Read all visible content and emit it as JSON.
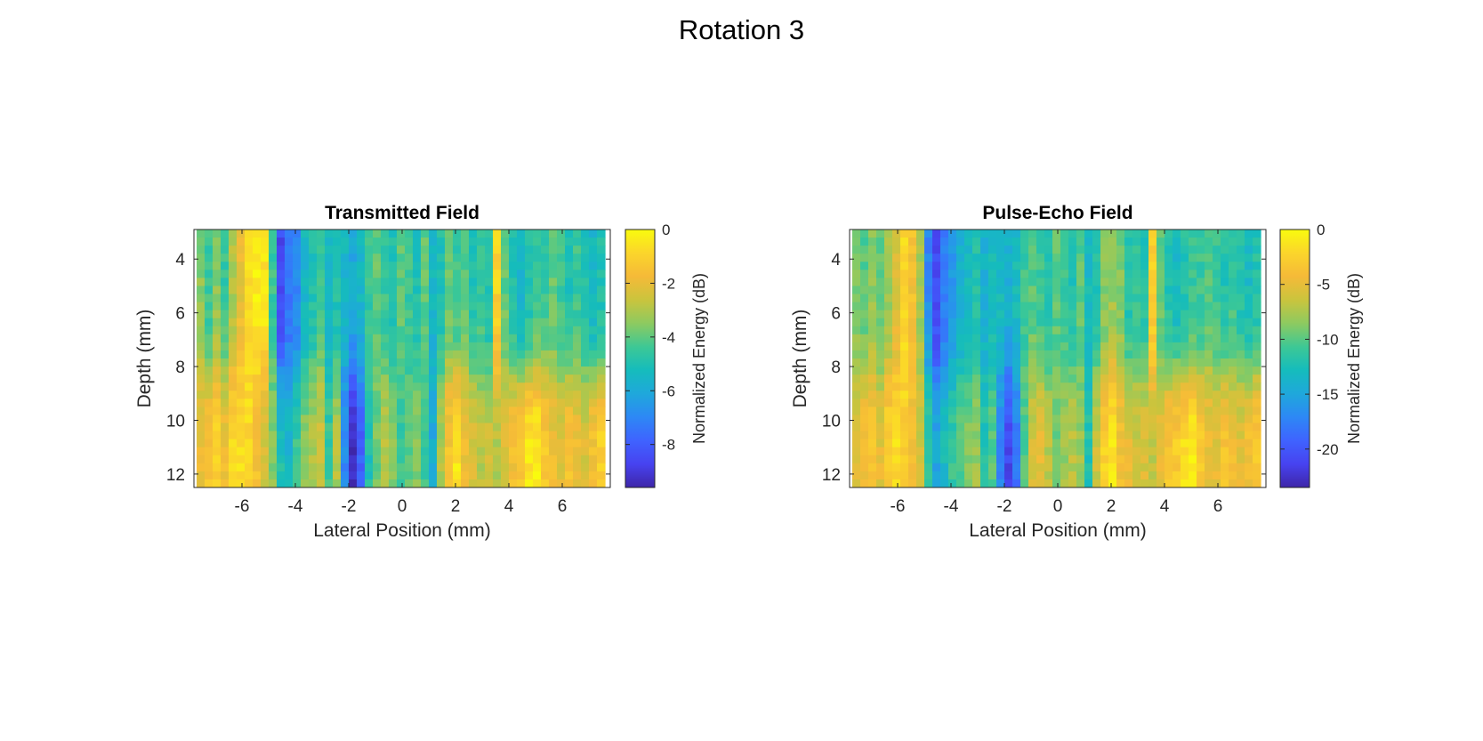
{
  "figure": {
    "title": "Rotation 3"
  },
  "colormap": [
    "#3e26a8",
    "#4743f0",
    "#3f63ff",
    "#2d88f5",
    "#1fa8db",
    "#15bcbc",
    "#3dc895",
    "#8dca60",
    "#cac43d",
    "#f5ba38",
    "#fbd52b",
    "#f9fb0e"
  ],
  "chart_data": [
    {
      "type": "heatmap",
      "title": "Transmitted Field",
      "xlabel": "Lateral Position (mm)",
      "ylabel": "Depth (mm)",
      "xlim": [
        -7.8,
        7.8
      ],
      "ylim": [
        2.9,
        12.5
      ],
      "y_reversed": true,
      "xticks": [
        -6,
        -4,
        -2,
        0,
        2,
        4,
        6
      ],
      "yticks": [
        4,
        6,
        8,
        10,
        12
      ],
      "grid": false,
      "colorbar": {
        "label": "Normalized Energy (dB)",
        "clim": [
          -9.6,
          0
        ],
        "ticks": [
          0,
          -2,
          -4,
          -6,
          -8
        ]
      },
      "columns": [
        {
          "x": -7.55,
          "top": -3.5,
          "bottom": -2.0
        },
        {
          "x": -7.25,
          "top": -4.5,
          "bottom": -1.5
        },
        {
          "x": -6.95,
          "top": -3.5,
          "bottom": -1.0
        },
        {
          "x": -6.65,
          "top": -4.5,
          "bottom": -1.8
        },
        {
          "x": -6.35,
          "top": -3.0,
          "bottom": -0.8
        },
        {
          "x": -6.05,
          "top": -2.0,
          "bottom": -0.6
        },
        {
          "x": -5.75,
          "top": -0.8,
          "bottom": -0.8
        },
        {
          "x": -5.45,
          "top": -0.3,
          "bottom": -1.6
        },
        {
          "x": -5.15,
          "top": -0.5,
          "bottom": -2.4
        },
        {
          "x": -4.85,
          "top": -4.5,
          "bottom": -3.5
        },
        {
          "x": -4.55,
          "top": -8.5,
          "bottom": -5.0
        },
        {
          "x": -4.25,
          "top": -7.5,
          "bottom": -5.5
        },
        {
          "x": -3.95,
          "top": -7.0,
          "bottom": -4.5
        },
        {
          "x": -3.65,
          "top": -5.5,
          "bottom": -3.5
        },
        {
          "x": -3.35,
          "top": -5.0,
          "bottom": -3.0
        },
        {
          "x": -3.05,
          "top": -4.5,
          "bottom": -2.5
        },
        {
          "x": -2.75,
          "top": -5.5,
          "bottom": -4.5
        },
        {
          "x": -2.45,
          "top": -5.0,
          "bottom": -3.0
        },
        {
          "x": -2.15,
          "top": -5.5,
          "bottom": -7.0
        },
        {
          "x": -1.85,
          "top": -6.0,
          "bottom": -9.3
        },
        {
          "x": -1.55,
          "top": -5.5,
          "bottom": -8.0
        },
        {
          "x": -1.25,
          "top": -4.5,
          "bottom": -5.0
        },
        {
          "x": -0.95,
          "top": -4.0,
          "bottom": -3.8
        },
        {
          "x": -0.65,
          "top": -4.5,
          "bottom": -3.0
        },
        {
          "x": -0.35,
          "top": -5.0,
          "bottom": -3.5
        },
        {
          "x": -0.05,
          "top": -4.0,
          "bottom": -4.5
        },
        {
          "x": 0.25,
          "top": -4.5,
          "bottom": -4.0
        },
        {
          "x": 0.55,
          "top": -5.0,
          "bottom": -3.5
        },
        {
          "x": 0.85,
          "top": -4.0,
          "bottom": -4.5
        },
        {
          "x": 1.15,
          "top": -5.5,
          "bottom": -6.0
        },
        {
          "x": 1.45,
          "top": -5.0,
          "bottom": -3.0
        },
        {
          "x": 1.75,
          "top": -4.0,
          "bottom": -1.5
        },
        {
          "x": 2.05,
          "top": -4.5,
          "bottom": -0.5
        },
        {
          "x": 2.35,
          "top": -4.0,
          "bottom": -1.8
        },
        {
          "x": 2.65,
          "top": -5.0,
          "bottom": -2.2
        },
        {
          "x": 2.95,
          "top": -4.5,
          "bottom": -2.8
        },
        {
          "x": 3.25,
          "top": -5.0,
          "bottom": -2.5
        },
        {
          "x": 3.55,
          "top": -1.0,
          "bottom": -3.0
        },
        {
          "x": 3.85,
          "top": -4.0,
          "bottom": -2.2
        },
        {
          "x": 4.15,
          "top": -5.0,
          "bottom": -1.6
        },
        {
          "x": 4.45,
          "top": -5.5,
          "bottom": -1.2
        },
        {
          "x": 4.75,
          "top": -5.0,
          "bottom": -0.5
        },
        {
          "x": 5.05,
          "top": -4.5,
          "bottom": -0.3
        },
        {
          "x": 5.35,
          "top": -4.5,
          "bottom": -1.2
        },
        {
          "x": 5.65,
          "top": -4.0,
          "bottom": -1.8
        },
        {
          "x": 5.95,
          "top": -4.5,
          "bottom": -2.2
        },
        {
          "x": 6.25,
          "top": -5.0,
          "bottom": -1.5
        },
        {
          "x": 6.55,
          "top": -4.5,
          "bottom": -1.8
        },
        {
          "x": 6.85,
          "top": -5.0,
          "bottom": -2.2
        },
        {
          "x": 7.15,
          "top": -5.5,
          "bottom": -1.5
        },
        {
          "x": 7.45,
          "top": -5.0,
          "bottom": -1.0
        }
      ]
    },
    {
      "type": "heatmap",
      "title": "Pulse-Echo Field",
      "xlabel": "Lateral Position (mm)",
      "ylabel": "Depth (mm)",
      "xlim": [
        -7.8,
        7.8
      ],
      "ylim": [
        2.9,
        12.5
      ],
      "y_reversed": true,
      "xticks": [
        -6,
        -4,
        -2,
        0,
        2,
        4,
        6
      ],
      "yticks": [
        4,
        6,
        8,
        10,
        12
      ],
      "grid": false,
      "colorbar": {
        "label": "Normalized Energy (dB)",
        "clim": [
          -23.5,
          0
        ],
        "ticks": [
          0,
          -5,
          -10,
          -15,
          -20
        ]
      },
      "columns": [
        {
          "x": -7.55,
          "top": -9.0,
          "bottom": -5.0
        },
        {
          "x": -7.25,
          "top": -10.0,
          "bottom": -4.0
        },
        {
          "x": -6.95,
          "top": -8.5,
          "bottom": -3.5
        },
        {
          "x": -6.65,
          "top": -10.0,
          "bottom": -5.0
        },
        {
          "x": -6.35,
          "top": -8.0,
          "bottom": -2.5
        },
        {
          "x": -6.05,
          "top": -5.5,
          "bottom": -1.8
        },
        {
          "x": -5.75,
          "top": -2.0,
          "bottom": -2.5
        },
        {
          "x": -5.45,
          "top": -4.0,
          "bottom": -4.0
        },
        {
          "x": -5.15,
          "top": -8.0,
          "bottom": -6.0
        },
        {
          "x": -4.85,
          "top": -17.0,
          "bottom": -11.0
        },
        {
          "x": -4.55,
          "top": -21.0,
          "bottom": -15.0
        },
        {
          "x": -4.25,
          "top": -18.0,
          "bottom": -13.0
        },
        {
          "x": -3.95,
          "top": -16.0,
          "bottom": -11.0
        },
        {
          "x": -3.65,
          "top": -14.0,
          "bottom": -10.0
        },
        {
          "x": -3.35,
          "top": -13.0,
          "bottom": -9.0
        },
        {
          "x": -3.05,
          "top": -12.0,
          "bottom": -8.0
        },
        {
          "x": -2.75,
          "top": -14.0,
          "bottom": -12.0
        },
        {
          "x": -2.45,
          "top": -13.0,
          "bottom": -10.0
        },
        {
          "x": -2.15,
          "top": -13.0,
          "bottom": -17.0
        },
        {
          "x": -1.85,
          "top": -14.0,
          "bottom": -21.0
        },
        {
          "x": -1.55,
          "top": -13.0,
          "bottom": -18.0
        },
        {
          "x": -1.25,
          "top": -11.0,
          "bottom": -10.0
        },
        {
          "x": -0.95,
          "top": -10.0,
          "bottom": -6.0
        },
        {
          "x": -0.65,
          "top": -11.0,
          "bottom": -5.0
        },
        {
          "x": -0.35,
          "top": -12.0,
          "bottom": -7.0
        },
        {
          "x": -0.05,
          "top": -10.0,
          "bottom": -9.0
        },
        {
          "x": 0.25,
          "top": -11.0,
          "bottom": -8.0
        },
        {
          "x": 0.55,
          "top": -12.0,
          "bottom": -7.0
        },
        {
          "x": 0.85,
          "top": -10.0,
          "bottom": -8.0
        },
        {
          "x": 1.15,
          "top": -13.0,
          "bottom": -12.0
        },
        {
          "x": 1.45,
          "top": -12.0,
          "bottom": -6.0
        },
        {
          "x": 1.75,
          "top": -9.0,
          "bottom": -2.5
        },
        {
          "x": 2.05,
          "top": -8.0,
          "bottom": -1.2
        },
        {
          "x": 2.35,
          "top": -9.0,
          "bottom": -4.0
        },
        {
          "x": 2.65,
          "top": -12.0,
          "bottom": -5.0
        },
        {
          "x": 2.95,
          "top": -11.0,
          "bottom": -6.0
        },
        {
          "x": 3.25,
          "top": -12.0,
          "bottom": -5.5
        },
        {
          "x": 3.55,
          "top": -2.5,
          "bottom": -6.5
        },
        {
          "x": 3.85,
          "top": -10.0,
          "bottom": -5.0
        },
        {
          "x": 4.15,
          "top": -12.0,
          "bottom": -3.5
        },
        {
          "x": 4.45,
          "top": -13.0,
          "bottom": -2.8
        },
        {
          "x": 4.75,
          "top": -12.0,
          "bottom": -1.5
        },
        {
          "x": 5.05,
          "top": -11.0,
          "bottom": -1.0
        },
        {
          "x": 5.35,
          "top": -11.0,
          "bottom": -3.0
        },
        {
          "x": 5.65,
          "top": -10.0,
          "bottom": -4.5
        },
        {
          "x": 5.95,
          "top": -11.0,
          "bottom": -5.0
        },
        {
          "x": 6.25,
          "top": -12.0,
          "bottom": -3.5
        },
        {
          "x": 6.55,
          "top": -11.0,
          "bottom": -4.0
        },
        {
          "x": 6.85,
          "top": -12.0,
          "bottom": -5.0
        },
        {
          "x": 7.15,
          "top": -13.0,
          "bottom": -4.0
        },
        {
          "x": 7.45,
          "top": -12.0,
          "bottom": -3.0
        }
      ]
    }
  ]
}
